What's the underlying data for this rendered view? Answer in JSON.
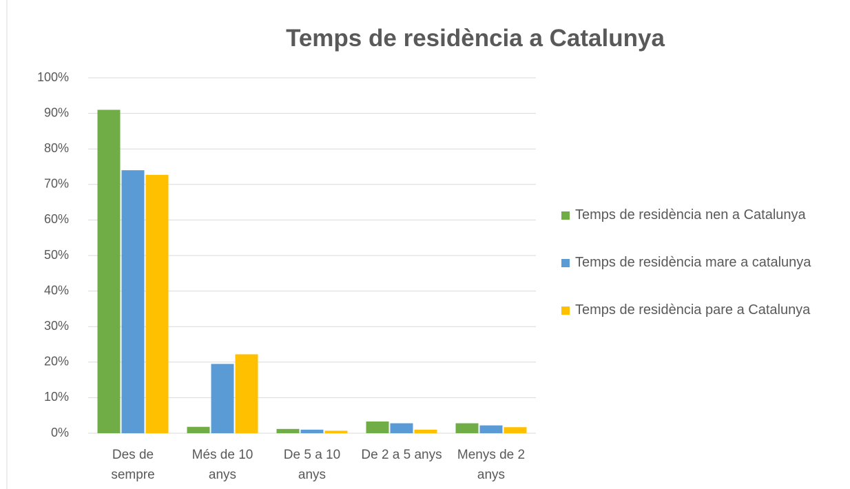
{
  "chart_data": {
    "type": "bar",
    "title": "Temps de residència a Catalunya",
    "categories": [
      "Des de sempre",
      "Més de 10 anys",
      "De 5 a 10 anys",
      "De 2 a 5 anys",
      "Menys de 2 anys"
    ],
    "series": [
      {
        "name": "Temps de residència nen a Catalunya",
        "color": "#70ad47",
        "values": [
          91,
          1.8,
          1.2,
          3.3,
          2.8
        ]
      },
      {
        "name": "Temps de residència mare a catalunya",
        "color": "#5b9bd5",
        "values": [
          74,
          19.5,
          1,
          2.8,
          2.2
        ]
      },
      {
        "name": "Temps de residència pare a Catalunya",
        "color": "#ffc000",
        "values": [
          72.7,
          22.2,
          0.7,
          1,
          1.7
        ]
      }
    ],
    "ylim": [
      0,
      100
    ],
    "yticks": [
      {
        "value": 0,
        "label": "0%"
      },
      {
        "value": 10,
        "label": "10%"
      },
      {
        "value": 20,
        "label": "20%"
      },
      {
        "value": 30,
        "label": "30%"
      },
      {
        "value": 40,
        "label": "40%"
      },
      {
        "value": 50,
        "label": "50%"
      },
      {
        "value": 60,
        "label": "60%"
      },
      {
        "value": 70,
        "label": "70%"
      },
      {
        "value": 80,
        "label": "80%"
      },
      {
        "value": 90,
        "label": "90%"
      },
      {
        "value": 100,
        "label": "100%"
      }
    ],
    "grid": true,
    "legend": "right"
  }
}
